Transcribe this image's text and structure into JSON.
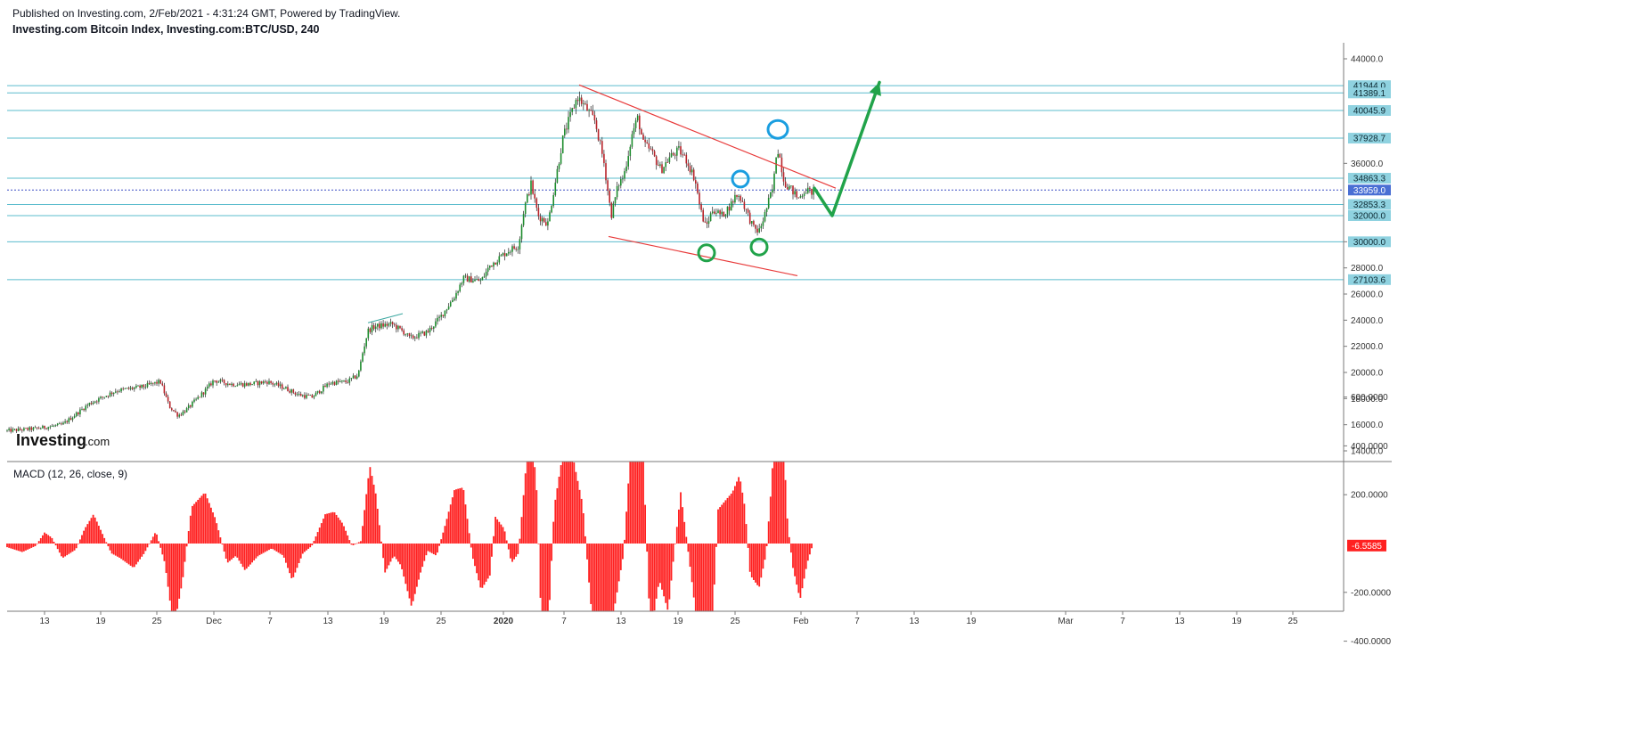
{
  "header": {
    "published": "Published on Investing.com, 2/Feb/2021 - 4:31:24 GMT, Powered by TradingView.",
    "title": "Investing.com Bitcoin Index, Investing.com:BTC/USD, 240"
  },
  "logo": {
    "main": "Investing",
    "suffix": ".com"
  },
  "colors": {
    "candle_up": "#1e8c2e",
    "candle_down": "#b8232a",
    "hline": "#5bbccd",
    "badge_bg": "#8fd2e0",
    "current_badge_bg": "#4a6fd4",
    "current_line": "#3b4fc4",
    "trendline": "#e83a3a",
    "arrow": "#21a34a",
    "circle_green": "#21a34a",
    "circle_blue": "#1a9ee0",
    "macd_hist": "#ff2020",
    "macd_badge_bg": "#ff2020"
  },
  "chart_data": [
    {
      "type": "candlestick",
      "title": "Investing.com Bitcoin Index, Investing.com:BTC/USD, 240",
      "xlabel": "",
      "ylabel": "",
      "ylim": [
        13000,
        45500
      ],
      "y_ticks": [
        "14000.0",
        "16000.0",
        "18000.0",
        "20000.0",
        "22000.0",
        "24000.0",
        "26000.0",
        "28000.0",
        "30000.0",
        "36000.0",
        "44000.0"
      ],
      "x_ticks": [
        {
          "label": "13",
          "bold": false
        },
        {
          "label": "19",
          "bold": false
        },
        {
          "label": "25",
          "bold": false
        },
        {
          "label": "Dec",
          "bold": false
        },
        {
          "label": "7",
          "bold": false
        },
        {
          "label": "13",
          "bold": false
        },
        {
          "label": "19",
          "bold": false
        },
        {
          "label": "25",
          "bold": false
        },
        {
          "label": "2020",
          "bold": true
        },
        {
          "label": "7",
          "bold": false
        },
        {
          "label": "13",
          "bold": false
        },
        {
          "label": "19",
          "bold": false
        },
        {
          "label": "25",
          "bold": false
        },
        {
          "label": "Feb",
          "bold": false
        },
        {
          "label": "7",
          "bold": false
        },
        {
          "label": "13",
          "bold": false
        },
        {
          "label": "19",
          "bold": false
        },
        {
          "label": "Mar",
          "bold": false
        },
        {
          "label": "7",
          "bold": false
        },
        {
          "label": "13",
          "bold": false
        },
        {
          "label": "19",
          "bold": false
        },
        {
          "label": "25",
          "bold": false
        }
      ],
      "price_path": [
        [
          0,
          15500
        ],
        [
          40,
          15700
        ],
        [
          70,
          16000
        ],
        [
          100,
          17600
        ],
        [
          130,
          18600
        ],
        [
          160,
          18900
        ],
        [
          180,
          19300
        ],
        [
          190,
          17400
        ],
        [
          200,
          16700
        ],
        [
          210,
          17200
        ],
        [
          230,
          18600
        ],
        [
          240,
          19400
        ],
        [
          260,
          19100
        ],
        [
          280,
          19100
        ],
        [
          300,
          19300
        ],
        [
          320,
          18800
        ],
        [
          335,
          18300
        ],
        [
          350,
          18100
        ],
        [
          370,
          19200
        ],
        [
          390,
          19300
        ],
        [
          402,
          19800
        ],
        [
          407,
          21500
        ],
        [
          413,
          23200
        ],
        [
          420,
          23500
        ],
        [
          440,
          23700
        ],
        [
          455,
          23000
        ],
        [
          460,
          22600
        ],
        [
          480,
          23100
        ],
        [
          495,
          24300
        ],
        [
          510,
          25800
        ],
        [
          520,
          27200
        ],
        [
          540,
          27000
        ],
        [
          550,
          28200
        ],
        [
          570,
          29300
        ],
        [
          582,
          29700
        ],
        [
          588,
          32500
        ],
        [
          596,
          34400
        ],
        [
          604,
          32000
        ],
        [
          615,
          31400
        ],
        [
          625,
          35300
        ],
        [
          632,
          38000
        ],
        [
          640,
          39600
        ],
        [
          648,
          41100
        ],
        [
          658,
          40200
        ],
        [
          668,
          39200
        ],
        [
          678,
          36000
        ],
        [
          686,
          32000
        ],
        [
          694,
          34400
        ],
        [
          700,
          35000
        ],
        [
          710,
          38400
        ],
        [
          716,
          39500
        ],
        [
          722,
          37500
        ],
        [
          730,
          37000
        ],
        [
          742,
          35500
        ],
        [
          752,
          36500
        ],
        [
          762,
          37000
        ],
        [
          770,
          36300
        ],
        [
          780,
          34800
        ],
        [
          786,
          32500
        ],
        [
          792,
          31100
        ],
        [
          800,
          32500
        ],
        [
          810,
          32000
        ],
        [
          820,
          32800
        ],
        [
          826,
          33600
        ],
        [
          832,
          33300
        ],
        [
          838,
          32300
        ],
        [
          846,
          31000
        ],
        [
          852,
          30800
        ],
        [
          858,
          32000
        ],
        [
          864,
          33400
        ],
        [
          868,
          34200
        ],
        [
          872,
          37400
        ],
        [
          876,
          36200
        ],
        [
          880,
          34600
        ],
        [
          888,
          34000
        ],
        [
          896,
          33300
        ],
        [
          904,
          34000
        ],
        [
          910,
          33800
        ],
        [
          915,
          33959
        ]
      ],
      "horizontal_levels": [
        {
          "value": 41944.0,
          "label": "41944.0"
        },
        {
          "value": 41389.1,
          "label": "41389.1"
        },
        {
          "value": 40045.9,
          "label": "40045.9"
        },
        {
          "value": 37928.7,
          "label": "37928.7"
        },
        {
          "value": 34863.3,
          "label": "34863.3"
        },
        {
          "value": 32853.3,
          "label": "32853.3"
        },
        {
          "value": 32000.0,
          "label": "32000.0"
        },
        {
          "value": 30000.0,
          "label": "30000.0"
        },
        {
          "value": 27103.6,
          "label": "27103.6"
        }
      ],
      "current_price": {
        "value": 33959.0,
        "label": "33959.0"
      },
      "annotations": {
        "wedge_upper": [
          [
            650,
            42000
          ],
          [
            938,
            34100
          ]
        ],
        "wedge_lower": [
          [
            683,
            30400
          ],
          [
            895,
            27400
          ]
        ],
        "upper_flag_channel": [
          [
            413,
            23800
          ],
          [
            452,
            24500
          ]
        ],
        "forecast_arrow": [
          [
            914,
            34100
          ],
          [
            934,
            32000
          ],
          [
            987,
            42200
          ]
        ],
        "green_circles": [
          [
            793,
            29150
          ],
          [
            852,
            29600
          ]
        ],
        "blue_circles": [
          [
            831,
            34800
          ],
          [
            873,
            38600
          ]
        ]
      }
    },
    {
      "type": "bar",
      "title": "MACD (12, 26, close, 9)",
      "ylim": [
        -550,
        680
      ],
      "y_ticks": [
        "600.0000",
        "400.0000",
        "200.0000",
        "-200.0000",
        "-400.0000"
      ],
      "current_value": "-6.5585",
      "hist_points": [
        [
          8,
          -15
        ],
        [
          25,
          -35
        ],
        [
          40,
          -10
        ],
        [
          50,
          45
        ],
        [
          58,
          25
        ],
        [
          70,
          -60
        ],
        [
          85,
          -25
        ],
        [
          95,
          60
        ],
        [
          105,
          120
        ],
        [
          115,
          40
        ],
        [
          125,
          -40
        ],
        [
          135,
          -60
        ],
        [
          150,
          -100
        ],
        [
          162,
          -40
        ],
        [
          175,
          50
        ],
        [
          185,
          -80
        ],
        [
          195,
          -350
        ],
        [
          205,
          -150
        ],
        [
          215,
          150
        ],
        [
          230,
          210
        ],
        [
          242,
          100
        ],
        [
          255,
          -80
        ],
        [
          265,
          -50
        ],
        [
          275,
          -110
        ],
        [
          290,
          -50
        ],
        [
          305,
          -20
        ],
        [
          318,
          -50
        ],
        [
          328,
          -150
        ],
        [
          340,
          -40
        ],
        [
          350,
          -10
        ],
        [
          365,
          120
        ],
        [
          375,
          130
        ],
        [
          385,
          80
        ],
        [
          395,
          -10
        ],
        [
          405,
          10
        ],
        [
          415,
          320
        ],
        [
          422,
          200
        ],
        [
          432,
          -120
        ],
        [
          442,
          -50
        ],
        [
          450,
          -90
        ],
        [
          462,
          -260
        ],
        [
          472,
          -120
        ],
        [
          480,
          -30
        ],
        [
          490,
          -50
        ],
        [
          500,
          80
        ],
        [
          510,
          220
        ],
        [
          520,
          230
        ],
        [
          530,
          -50
        ],
        [
          540,
          -190
        ],
        [
          550,
          -130
        ],
        [
          556,
          110
        ],
        [
          566,
          60
        ],
        [
          574,
          -80
        ],
        [
          582,
          -40
        ],
        [
          590,
          300
        ],
        [
          596,
          460
        ],
        [
          602,
          250
        ],
        [
          608,
          -380
        ],
        [
          614,
          -460
        ],
        [
          622,
          150
        ],
        [
          630,
          330
        ],
        [
          638,
          450
        ],
        [
          646,
          300
        ],
        [
          654,
          160
        ],
        [
          662,
          -200
        ],
        [
          670,
          -520
        ],
        [
          680,
          -540
        ],
        [
          688,
          -300
        ],
        [
          700,
          -40
        ],
        [
          708,
          400
        ],
        [
          714,
          650
        ],
        [
          722,
          350
        ],
        [
          730,
          -380
        ],
        [
          740,
          -150
        ],
        [
          750,
          -280
        ],
        [
          756,
          -60
        ],
        [
          764,
          210
        ],
        [
          774,
          -80
        ],
        [
          784,
          -380
        ],
        [
          794,
          -530
        ],
        [
          800,
          -300
        ],
        [
          806,
          140
        ],
        [
          815,
          180
        ],
        [
          822,
          210
        ],
        [
          830,
          280
        ],
        [
          836,
          150
        ],
        [
          842,
          -130
        ],
        [
          852,
          -180
        ],
        [
          860,
          -40
        ],
        [
          866,
          250
        ],
        [
          872,
          640
        ],
        [
          878,
          530
        ],
        [
          884,
          80
        ],
        [
          890,
          -100
        ],
        [
          898,
          -230
        ],
        [
          906,
          -80
        ],
        [
          912,
          -7
        ]
      ]
    }
  ]
}
